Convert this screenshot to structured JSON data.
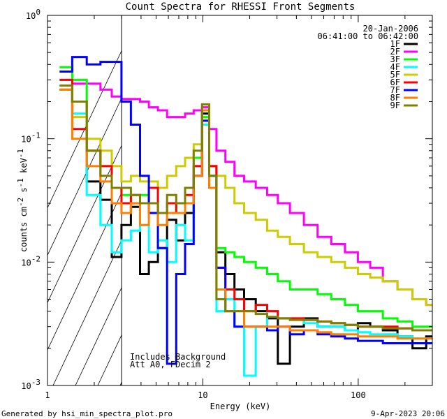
{
  "chart_data": {
    "type": "line",
    "title": "Count Spectra for RHESSI Front Segments",
    "xlabel": "Energy (keV)",
    "ylabel_main": "counts cm",
    "ylabel_exp1": "-2",
    "ylabel_mid": " s",
    "ylabel_exp2": "-1",
    "ylabel_end": " keV",
    "ylabel_exp3": "-1",
    "xscale": "log",
    "yscale": "log",
    "xlim": [
      1,
      300
    ],
    "ylim": [
      0.001,
      1
    ],
    "x_ticks": [
      {
        "value": 1,
        "label": "1"
      },
      {
        "value": 10,
        "label": "10"
      },
      {
        "value": 100,
        "label": "100"
      }
    ],
    "y_ticks": [
      {
        "value": 1,
        "base": "10",
        "exp": "0"
      },
      {
        "value": 0.1,
        "base": "10",
        "exp": "-1"
      },
      {
        "value": 0.01,
        "base": "10",
        "exp": "-2"
      },
      {
        "value": 0.001,
        "base": "10",
        "exp": "-3"
      }
    ],
    "attenuator_hatch_upper_kev": 3,
    "date": "20-Jan-2006",
    "time_range": "06:41:00 to 06:42:00",
    "note_lines": [
      "Includes Background",
      "Att A0, FDecim 2"
    ],
    "footer_left": "Generated by hsi_min_spectra_plot.pro",
    "footer_right": "9-Apr-2023 20:06",
    "legend_position": "top-right",
    "series": [
      {
        "name": "1F",
        "color": "#000000",
        "e": [
          1.3,
          1.6,
          2.0,
          2.4,
          2.8,
          3.2,
          3.7,
          4.2,
          4.8,
          5.5,
          6.3,
          7.2,
          8.2,
          9.3,
          10.5,
          11.5,
          13,
          15,
          17,
          20,
          24,
          28,
          33,
          40,
          50,
          60,
          75,
          90,
          110,
          130,
          160,
          200,
          250,
          300
        ],
        "v": [
          0.25,
          0.2,
          0.045,
          0.032,
          0.011,
          0.02,
          0.028,
          0.008,
          0.01,
          0.013,
          0.022,
          0.015,
          0.025,
          0.05,
          0.16,
          0.06,
          0.012,
          0.008,
          0.006,
          0.005,
          0.004,
          0.0035,
          0.0015,
          0.003,
          0.0035,
          0.003,
          0.003,
          0.0028,
          0.0032,
          0.003,
          0.0028,
          0.0025,
          0.002,
          0.0025
        ]
      },
      {
        "name": "2F",
        "color": "#ff00ff",
        "e": [
          1.3,
          1.6,
          2.0,
          2.4,
          2.8,
          3.2,
          3.7,
          4.2,
          4.8,
          5.5,
          6.3,
          7.2,
          8.2,
          9.3,
          10.5,
          11.5,
          13,
          15,
          17,
          20,
          24,
          28,
          33,
          40,
          50,
          60,
          75,
          90,
          110,
          130,
          160,
          200,
          250,
          300
        ],
        "v": [
          0.27,
          0.28,
          0.28,
          0.25,
          0.22,
          0.21,
          0.21,
          0.2,
          0.18,
          0.17,
          0.15,
          0.15,
          0.16,
          0.17,
          0.18,
          0.12,
          0.08,
          0.065,
          0.05,
          0.045,
          0.04,
          0.035,
          0.03,
          0.025,
          0.02,
          0.016,
          0.014,
          0.012,
          0.01,
          0.009,
          0.007,
          0.006,
          0.005,
          0.0045
        ]
      },
      {
        "name": "3F",
        "color": "#00ff00",
        "e": [
          1.3,
          1.6,
          2.0,
          2.4,
          2.8,
          3.2,
          3.7,
          4.2,
          4.8,
          5.5,
          6.3,
          7.2,
          8.2,
          9.3,
          10.5,
          11.5,
          13,
          15,
          17,
          20,
          24,
          28,
          33,
          40,
          50,
          60,
          75,
          90,
          110,
          130,
          160,
          200,
          250,
          300
        ],
        "v": [
          0.38,
          0.3,
          0.08,
          0.06,
          0.04,
          0.035,
          0.03,
          0.035,
          0.03,
          0.025,
          0.025,
          0.03,
          0.04,
          0.07,
          0.15,
          0.04,
          0.013,
          0.012,
          0.011,
          0.01,
          0.009,
          0.008,
          0.007,
          0.006,
          0.006,
          0.0055,
          0.005,
          0.0045,
          0.004,
          0.004,
          0.0035,
          0.0033,
          0.003,
          0.003
        ]
      },
      {
        "name": "4F",
        "color": "#00ffff",
        "e": [
          1.3,
          1.6,
          2.0,
          2.4,
          2.8,
          3.2,
          3.7,
          4.2,
          4.8,
          5.5,
          6.3,
          7.2,
          8.2,
          9.3,
          10.5,
          11.5,
          13,
          15,
          17,
          20,
          24,
          28,
          33,
          40,
          50,
          60,
          75,
          90,
          110,
          130,
          160,
          200,
          250,
          300
        ],
        "v": [
          0.3,
          0.16,
          0.035,
          0.02,
          0.012,
          0.015,
          0.018,
          0.02,
          0.012,
          0.015,
          0.01,
          0.02,
          0.015,
          0.06,
          0.13,
          0.05,
          0.004,
          0.005,
          0.003,
          0.0012,
          0.003,
          0.004,
          0.0035,
          0.0035,
          0.0032,
          0.003,
          0.003,
          0.0028,
          0.0027,
          0.0026,
          0.0026,
          0.0025,
          0.0024,
          0.0024
        ]
      },
      {
        "name": "5F",
        "color": "#cccc00",
        "e": [
          1.3,
          1.6,
          2.0,
          2.4,
          2.8,
          3.2,
          3.7,
          4.2,
          4.8,
          5.5,
          6.3,
          7.2,
          8.2,
          9.3,
          10.5,
          11.5,
          13,
          15,
          17,
          20,
          24,
          28,
          33,
          40,
          50,
          60,
          75,
          90,
          110,
          130,
          160,
          200,
          250,
          300
        ],
        "v": [
          0.25,
          0.15,
          0.1,
          0.08,
          0.06,
          0.045,
          0.05,
          0.045,
          0.045,
          0.04,
          0.05,
          0.06,
          0.07,
          0.09,
          0.14,
          0.06,
          0.05,
          0.04,
          0.03,
          0.025,
          0.022,
          0.018,
          0.016,
          0.014,
          0.012,
          0.011,
          0.01,
          0.009,
          0.008,
          0.0075,
          0.007,
          0.006,
          0.005,
          0.0045
        ]
      },
      {
        "name": "6F",
        "color": "#ff0000",
        "e": [
          1.3,
          1.6,
          2.0,
          2.4,
          2.8,
          3.2,
          3.7,
          4.2,
          4.8,
          5.5,
          6.3,
          7.2,
          8.2,
          9.3,
          10.5,
          11.5,
          13,
          15,
          17,
          20,
          24,
          28,
          33,
          40,
          50,
          60,
          75,
          90,
          110,
          130,
          160,
          200,
          250,
          300
        ],
        "v": [
          0.3,
          0.12,
          0.08,
          0.06,
          0.04,
          0.03,
          0.035,
          0.03,
          0.04,
          0.025,
          0.03,
          0.025,
          0.035,
          0.06,
          0.17,
          0.06,
          0.009,
          0.006,
          0.005,
          0.004,
          0.0045,
          0.004,
          0.0035,
          0.0035,
          0.0034,
          0.0033,
          0.0032,
          0.0031,
          0.003,
          0.003,
          0.003,
          0.0029,
          0.0028,
          0.0028
        ]
      },
      {
        "name": "7F",
        "color": "#0000ff",
        "e": [
          1.3,
          1.6,
          2.0,
          2.4,
          2.8,
          3.2,
          3.7,
          4.2,
          4.8,
          5.5,
          6.3,
          7.2,
          8.2,
          9.3,
          10.5,
          11.5,
          13,
          15,
          17,
          20,
          24,
          28,
          33,
          40,
          50,
          60,
          75,
          90,
          110,
          130,
          160,
          200,
          250,
          300
        ],
        "v": [
          0.35,
          0.46,
          0.4,
          0.42,
          0.42,
          0.2,
          0.13,
          0.05,
          0.025,
          0.013,
          0.0015,
          0.008,
          0.014,
          0.05,
          0.14,
          0.05,
          0.009,
          0.004,
          0.003,
          0.003,
          0.003,
          0.0028,
          0.003,
          0.0026,
          0.0028,
          0.0026,
          0.0025,
          0.0024,
          0.0023,
          0.0023,
          0.0022,
          0.0022,
          0.0022,
          0.0022
        ]
      },
      {
        "name": "8F",
        "color": "#ff8000",
        "e": [
          1.3,
          1.6,
          2.0,
          2.4,
          2.8,
          3.2,
          3.7,
          4.2,
          4.8,
          5.5,
          6.3,
          7.2,
          8.2,
          9.3,
          10.5,
          11.5,
          13,
          15,
          17,
          20,
          24,
          28,
          33,
          40,
          50,
          60,
          75,
          90,
          110,
          130,
          160,
          200,
          250,
          300
        ],
        "v": [
          0.25,
          0.1,
          0.06,
          0.045,
          0.03,
          0.025,
          0.03,
          0.02,
          0.03,
          0.02,
          0.025,
          0.025,
          0.03,
          0.05,
          0.17,
          0.04,
          0.006,
          0.004,
          0.004,
          0.003,
          0.003,
          0.003,
          0.003,
          0.0028,
          0.0028,
          0.0027,
          0.0026,
          0.0026,
          0.0025,
          0.0025,
          0.0025,
          0.0024,
          0.0024,
          0.0024
        ]
      },
      {
        "name": "9F",
        "color": "#808000",
        "e": [
          1.3,
          1.6,
          2.0,
          2.4,
          2.8,
          3.2,
          3.7,
          4.2,
          4.8,
          5.5,
          6.3,
          7.2,
          8.2,
          9.3,
          10.5,
          11.5,
          13,
          15,
          17,
          20,
          24,
          28,
          33,
          40,
          50,
          60,
          75,
          90,
          110,
          130,
          160,
          200,
          250,
          300
        ],
        "v": [
          0.27,
          0.2,
          0.08,
          0.05,
          0.04,
          0.04,
          0.035,
          0.03,
          0.03,
          0.025,
          0.035,
          0.03,
          0.04,
          0.08,
          0.19,
          0.05,
          0.005,
          0.004,
          0.004,
          0.004,
          0.0038,
          0.0036,
          0.0035,
          0.0034,
          0.0034,
          0.0033,
          0.0032,
          0.0031,
          0.003,
          0.003,
          0.0029,
          0.0029,
          0.0028,
          0.0028
        ]
      }
    ]
  }
}
